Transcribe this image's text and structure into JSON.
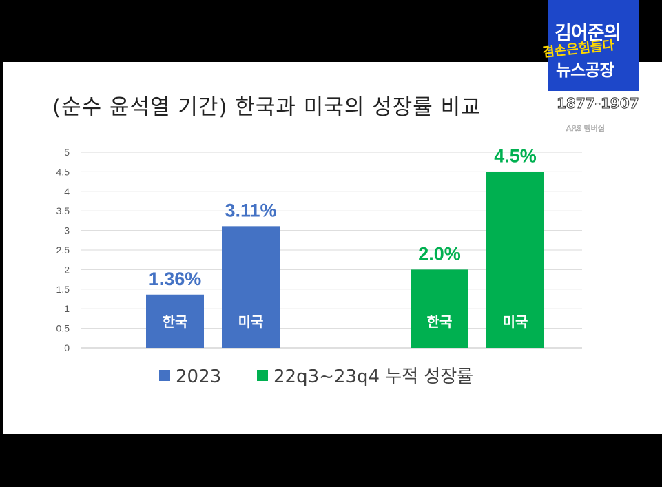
{
  "chart_data": {
    "type": "bar",
    "title": "(순수 윤석열 기간) 한국과 미국의 성장률 비교",
    "ylim": [
      0,
      5
    ],
    "yticks": [
      "0",
      "0.5",
      "1",
      "1.5",
      "2",
      "2.5",
      "3",
      "3.5",
      "4",
      "4.5",
      "5"
    ],
    "grid": true,
    "legend_position": "bottom",
    "series": [
      {
        "name": "2023",
        "color": "#4472c4",
        "categories": [
          "한국",
          "미국"
        ],
        "values": [
          1.36,
          3.11
        ],
        "data_labels": [
          "1.36%",
          "3.11%"
        ]
      },
      {
        "name": "22q3~23q4 누적 성장률",
        "color": "#00b050",
        "categories": [
          "한국",
          "미국"
        ],
        "values": [
          2.0,
          4.5
        ],
        "data_labels": [
          "2.0%",
          "4.5%"
        ]
      }
    ]
  },
  "overlay": {
    "logo_line1": "김어준의",
    "logo_line2": "겸손은힘들다",
    "logo_line3": "뉴스공장",
    "phone": "1877-1907",
    "ars": "ARS 멤버십"
  }
}
